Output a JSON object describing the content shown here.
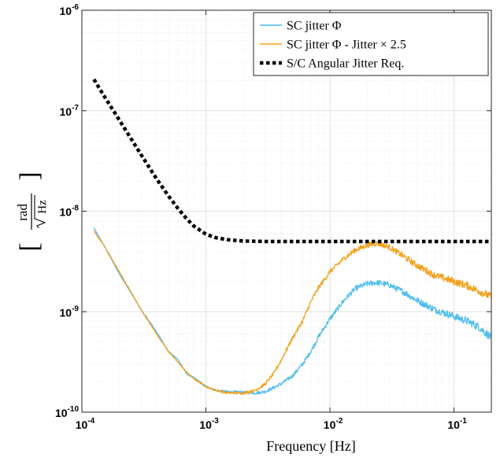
{
  "chart_data": {
    "type": "line",
    "x_scale": "log",
    "y_scale": "log",
    "xlim": [
      0.0001,
      0.2
    ],
    "ylim": [
      1e-10,
      1e-06
    ],
    "grid": true,
    "minor_grid": true,
    "legend_position": "top-right",
    "xlabel": "Frequency [Hz]",
    "ylabel": {
      "numerator": "rad",
      "denominator": "Hz",
      "left_bracket": "[",
      "right_bracket": "]"
    },
    "x_ticks": [
      {
        "value": 0.0001,
        "base": "10",
        "exp": "-4"
      },
      {
        "value": 0.001,
        "base": "10",
        "exp": "-3"
      },
      {
        "value": 0.01,
        "base": "10",
        "exp": "-2"
      },
      {
        "value": 0.1,
        "base": "10",
        "exp": "-1"
      }
    ],
    "y_ticks": [
      {
        "value": 1e-10,
        "base": "10",
        "exp": "-10"
      },
      {
        "value": 1e-09,
        "base": "10",
        "exp": "-9"
      },
      {
        "value": 1e-08,
        "base": "10",
        "exp": "-8"
      },
      {
        "value": 1e-07,
        "base": "10",
        "exp": "-7"
      },
      {
        "value": 1e-06,
        "base": "10",
        "exp": "-6"
      }
    ],
    "series": [
      {
        "name": "SC jitter Φ",
        "color": "#4dbeee",
        "style": "solid",
        "noisy": true,
        "x": [
          0.000125,
          0.00015,
          0.0002,
          0.0003,
          0.0004,
          0.0005,
          0.0006,
          0.0007,
          0.0008,
          0.001,
          0.0012,
          0.0015,
          0.002,
          0.0025,
          0.003,
          0.0035,
          0.004,
          0.005,
          0.006,
          0.007,
          0.008,
          0.01,
          0.013,
          0.016,
          0.02,
          0.024,
          0.03,
          0.04,
          0.05,
          0.07,
          0.1,
          0.13,
          0.16,
          0.2
        ],
        "y": [
          6.8e-09,
          4.6e-09,
          2.4e-09,
          1.05e-09,
          6.3e-10,
          4e-10,
          3.3e-10,
          2.4e-10,
          2.2e-10,
          1.8e-10,
          1.65e-10,
          1.6e-10,
          1.58e-10,
          1.55e-10,
          1.6e-10,
          1.75e-10,
          1.9e-10,
          2.3e-10,
          3e-10,
          4e-10,
          5.5e-10,
          8.5e-10,
          1.3e-09,
          1.7e-09,
          1.9e-09,
          1.95e-09,
          1.85e-09,
          1.55e-09,
          1.3e-09,
          1.05e-09,
          9e-10,
          8e-10,
          7e-10,
          5.5e-10
        ]
      },
      {
        "name": "SC jitter Φ - Jitter × 2.5",
        "color": "#f5a01a",
        "style": "solid",
        "noisy": true,
        "x": [
          0.000125,
          0.00015,
          0.0002,
          0.0003,
          0.0004,
          0.0005,
          0.0006,
          0.0007,
          0.0008,
          0.001,
          0.0012,
          0.0015,
          0.002,
          0.0025,
          0.003,
          0.0035,
          0.004,
          0.005,
          0.006,
          0.007,
          0.008,
          0.01,
          0.013,
          0.016,
          0.02,
          0.024,
          0.03,
          0.04,
          0.05,
          0.07,
          0.1,
          0.13,
          0.16,
          0.2
        ],
        "y": [
          6.3e-09,
          4.6e-09,
          2.5e-09,
          1.05e-09,
          6e-10,
          4e-10,
          3.1e-10,
          2.5e-10,
          2.15e-10,
          1.8e-10,
          1.65e-10,
          1.55e-10,
          1.55e-10,
          1.65e-10,
          1.9e-10,
          2.4e-10,
          3.2e-10,
          5.5e-10,
          8e-10,
          1.25e-09,
          1.7e-09,
          2.5e-09,
          3.4e-09,
          4.1e-09,
          4.6e-09,
          4.8e-09,
          4.4e-09,
          3.5e-09,
          2.9e-09,
          2.3e-09,
          2e-09,
          1.8e-09,
          1.6e-09,
          1.4e-09
        ]
      },
      {
        "name": "S/C Angular Jitter Req.",
        "color": "#000000",
        "style": "dotted",
        "noisy": false,
        "x": [
          0.000125,
          0.00015,
          0.0002,
          0.0003,
          0.0004,
          0.0005,
          0.0006,
          0.0007,
          0.0008,
          0.001,
          0.0012,
          0.0015,
          0.002,
          0.003,
          0.005,
          0.01,
          0.02,
          0.05,
          0.1,
          0.2
        ],
        "y": [
          2.05e-07,
          1.42e-07,
          8.1e-08,
          3.65e-08,
          2.1e-08,
          1.41e-08,
          1.05e-08,
          8.4e-09,
          7.1e-09,
          5.9e-09,
          5.45e-09,
          5.2e-09,
          5.05e-09,
          5e-09,
          5e-09,
          5e-09,
          5e-09,
          5e-09,
          5e-09,
          5e-09
        ]
      }
    ]
  }
}
